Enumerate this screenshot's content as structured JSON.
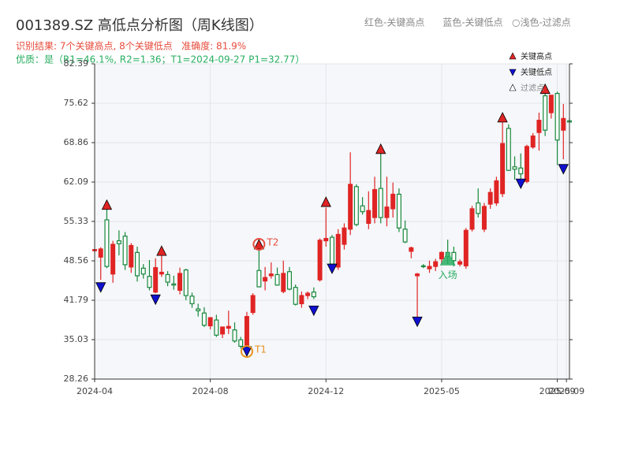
{
  "chart_data": {
    "type": "candlestick",
    "title": "001389.SZ 高低点分析图（周K线图）",
    "header_note": "红色-关键高点      蓝色-关键低点   ○浅色-过滤点",
    "result_text": "识别结果: 7个关键高点, 8个关键低点   准确度: 81.9%",
    "quality_text": "优质：是（R1=46.1%, R2=1.36；T1=2024-09-27 P1=32.77）",
    "up_color": "#e02424",
    "down_color": "#17873b",
    "grid": true,
    "xlim": [
      0,
      78
    ],
    "xticks": [
      {
        "value": 0,
        "label": "2024-04"
      },
      {
        "value": 19,
        "label": "2024-08"
      },
      {
        "value": 38,
        "label": "2024-12"
      },
      {
        "value": 57,
        "label": "2025-05"
      },
      {
        "value": 76,
        "label": "2025-09"
      },
      {
        "value": 77.5,
        "label": "2025-09"
      }
    ],
    "ylim": [
      28.26,
      82.39
    ],
    "yticks": [
      28.26,
      35.03,
      41.79,
      48.56,
      55.33,
      62.09,
      68.86,
      75.62,
      82.39
    ],
    "open": [
      50.3,
      49.2,
      55.6,
      46.3,
      52.0,
      52.8,
      47.5,
      50.0,
      47.3,
      45.9,
      43.2,
      46.3,
      46.2,
      44.6,
      43.5,
      47.0,
      42.5,
      40.3,
      39.6,
      37.4,
      38.4,
      36.0,
      37.0,
      36.7,
      35.0,
      33.8,
      39.7,
      46.9,
      45.1,
      46.0,
      46.2,
      43.3,
      46.7,
      44.0,
      41.2,
      42.6,
      43.2,
      45.3,
      52.0,
      52.6,
      47.5,
      51.4,
      54.0,
      61.3,
      58.0,
      55.0,
      56.0,
      61.0,
      56.0,
      57.5,
      60.0,
      54.0,
      50.2,
      46.0,
      47.7,
      47.2,
      47.6,
      48.9,
      50.0,
      50.0,
      48.0,
      47.7,
      54.0,
      58.5,
      54.0,
      58.3,
      58.5,
      60.1,
      71.3,
      64.7,
      64.5,
      62.2,
      68.1,
      70.6,
      76.9,
      74.0,
      77.3,
      71.0,
      72.6
    ],
    "high": [
      50.6,
      50.9,
      57.5,
      52.0,
      53.8,
      53.5,
      51.6,
      51.0,
      48.0,
      48.7,
      49.0,
      50.0,
      46.8,
      46.0,
      47.4,
      47.2,
      43.1,
      41.2,
      40.6,
      38.9,
      39.3,
      37.2,
      40.0,
      38.0,
      35.5,
      39.8,
      43.0,
      50.5,
      47.5,
      48.3,
      47.4,
      48.6,
      47.5,
      44.5,
      43.3,
      43.3,
      44.0,
      52.4,
      57.7,
      53.0,
      54.0,
      55.0,
      67.2,
      61.7,
      59.5,
      60.5,
      63.0,
      67.0,
      63.0,
      62.0,
      61.0,
      55.5,
      51.0,
      46.5,
      48.0,
      48.6,
      48.9,
      50.2,
      52.2,
      51.0,
      48.8,
      54.2,
      58.0,
      61.0,
      58.5,
      61.0,
      63.0,
      72.5,
      72.0,
      66.5,
      67.0,
      68.5,
      70.5,
      74.0,
      78.0,
      76.5,
      77.6,
      75.5,
      73.0
    ],
    "low": [
      50.0,
      45.3,
      47.3,
      44.8,
      49.5,
      47.0,
      46.5,
      45.0,
      45.5,
      43.5,
      43.0,
      45.8,
      44.2,
      43.6,
      42.8,
      41.8,
      40.5,
      39.0,
      37.2,
      36.8,
      35.5,
      35.3,
      36.0,
      34.5,
      33.5,
      32.8,
      39.3,
      44.0,
      43.5,
      45.5,
      44.3,
      43.0,
      43.5,
      40.9,
      40.5,
      42.0,
      42.0,
      45.0,
      51.0,
      47.5,
      47.0,
      50.5,
      53.0,
      54.5,
      56.5,
      54.0,
      55.0,
      55.0,
      54.5,
      56.0,
      53.5,
      51.6,
      49.0,
      38.9,
      47.3,
      46.5,
      46.8,
      48.0,
      48.0,
      47.6,
      47.6,
      47.2,
      53.6,
      56.0,
      53.5,
      57.5,
      58.0,
      59.5,
      64.0,
      62.5,
      62.5,
      61.9,
      67.8,
      67.5,
      70.0,
      73.0,
      65.0,
      66.0,
      72.4
    ],
    "close": [
      50.5,
      50.6,
      47.6,
      51.4,
      51.5,
      47.9,
      51.2,
      46.0,
      46.3,
      44.0,
      47.4,
      46.6,
      44.9,
      44.4,
      46.4,
      42.6,
      41.2,
      40.0,
      37.5,
      38.8,
      35.8,
      37.2,
      37.3,
      34.8,
      33.9,
      39.0,
      42.6,
      44.1,
      45.7,
      46.3,
      44.4,
      46.4,
      43.7,
      41.1,
      42.6,
      43.0,
      42.4,
      52.1,
      52.4,
      48.0,
      53.1,
      54.2,
      61.7,
      54.8,
      57.0,
      57.2,
      60.8,
      56.0,
      57.8,
      60.0,
      54.2,
      51.8,
      50.8,
      46.3,
      47.6,
      47.6,
      48.4,
      50.0,
      49.3,
      48.6,
      48.4,
      53.8,
      57.5,
      56.7,
      57.9,
      60.3,
      62.3,
      68.7,
      64.1,
      64.3,
      63.5,
      68.2,
      70.0,
      72.7,
      71.0,
      77.0,
      69.3,
      73.0,
      72.4
    ],
    "key_highs": [
      {
        "index": 2,
        "value": 58.2
      },
      {
        "index": 11,
        "value": 50.3
      },
      {
        "index": 27,
        "value": 51.4
      },
      {
        "index": 38,
        "value": 58.7
      },
      {
        "index": 47,
        "value": 67.8
      },
      {
        "index": 67,
        "value": 73.2
      },
      {
        "index": 74,
        "value": 78.1
      }
    ],
    "key_lows": [
      {
        "index": 1,
        "value": 44.0
      },
      {
        "index": 10,
        "value": 41.9
      },
      {
        "index": 25,
        "value": 33.0
      },
      {
        "index": 36,
        "value": 40.0
      },
      {
        "index": 39,
        "value": 47.2
      },
      {
        "index": 53,
        "value": 38.1
      },
      {
        "index": 70,
        "value": 61.8
      },
      {
        "index": 77,
        "value": 64.3
      }
    ],
    "t2": {
      "label": "T2",
      "index": 27,
      "value": 51.4
    },
    "t1": {
      "label": "T1",
      "index": 25,
      "value": 33.0
    },
    "entry": {
      "label": "入场",
      "index": 58,
      "value": 49.0
    },
    "legend": [
      "关键高点",
      "关键低点",
      "过滤点"
    ]
  }
}
